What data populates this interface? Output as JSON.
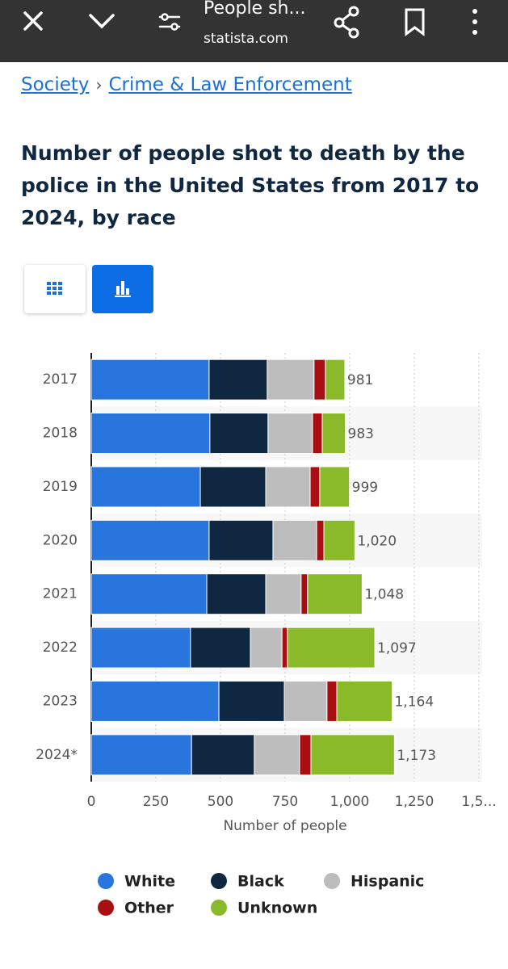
{
  "header": {
    "title": "People sh...",
    "url": "statista.com"
  },
  "breadcrumb": {
    "items": [
      "Society",
      "Crime & Law Enforcement"
    ],
    "separator": "›"
  },
  "chart_data": {
    "type": "stacked-barh",
    "title": "Number of people shot to death by the police in the United States from 2017 to 2024, by race",
    "xlabel": "Number of people",
    "categories": [
      "2017",
      "2018",
      "2019",
      "2020",
      "2021",
      "2022",
      "2023",
      "2024*"
    ],
    "series": [
      {
        "name": "White",
        "color": "#2876dd",
        "values": [
          456,
          459,
          422,
          456,
          447,
          384,
          494,
          388
        ]
      },
      {
        "name": "Black",
        "color": "#0f2741",
        "values": [
          225,
          225,
          253,
          247,
          228,
          232,
          253,
          243
        ]
      },
      {
        "name": "Hispanic",
        "color": "#bdbdbd",
        "values": [
          181,
          172,
          172,
          169,
          137,
          122,
          165,
          175
        ]
      },
      {
        "name": "Other",
        "color": "#a90f12",
        "values": [
          44,
          38,
          37,
          28,
          25,
          21,
          38,
          44
        ]
      },
      {
        "name": "Unknown",
        "color": "#8aba2a",
        "values": [
          75,
          89,
          115,
          120,
          211,
          338,
          214,
          323
        ]
      }
    ],
    "totals": [
      981,
      983,
      999,
      1020,
      1048,
      1097,
      1164,
      1173
    ],
    "total_labels": [
      "981",
      "983",
      "999",
      "1,020",
      "1,048",
      "1,097",
      "1,164",
      "1,173"
    ],
    "xlim": [
      0,
      1500
    ],
    "xticks": [
      0,
      250,
      500,
      750,
      {
        "value": 1000,
        "label": "1,000"
      },
      {
        "value": 1250,
        "label": "1,250"
      },
      {
        "value": 1500,
        "label": "1,5..."
      }
    ],
    "grid": true,
    "legend": "bottom"
  }
}
